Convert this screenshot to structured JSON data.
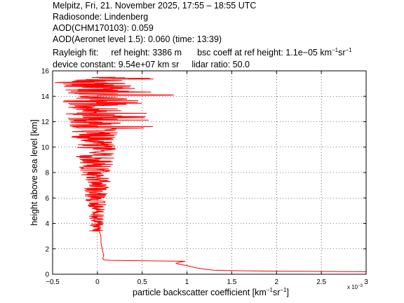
{
  "header": {
    "line1": "Melpitz, Fri, 21. November 2025, 17:55 – 18:55 UTC",
    "line2": "Radiosonde: Lindenberg",
    "line3": "AOD(CHM170103): 0.059",
    "line4": "AOD(Aeronet level 1.5): 0.060   (time: 13:39)",
    "rayleigh_label": "Rayleigh fit:",
    "ref_height": "ref height: 3386 m",
    "bsc_coeff_pre": "bsc coeff at ref height: 1.1e−05 km",
    "bsc_coeff_sup1": "−1",
    "bsc_coeff_mid": "sr",
    "bsc_coeff_sup2": "−1",
    "device_constant": "device constant: 9.54e+07 km sr",
    "lidar_ratio": "lidar ratio: 50.0"
  },
  "chart_data": {
    "type": "line",
    "xlabel_pre": "particle backscatter coefficient [km",
    "xlabel_sup1": "−1",
    "xlabel_mid": "sr",
    "xlabel_sup2": "−1",
    "xlabel_post": "]",
    "ylabel": "height above sea level [km]",
    "x_exponent": "x 10",
    "x_exponent_power": "−3",
    "xlim": [
      -0.5,
      3
    ],
    "ylim": [
      0,
      16
    ],
    "xticks": [
      "−0.5",
      "0",
      "0.5",
      "1",
      "1.5",
      "2",
      "2.5",
      "3"
    ],
    "yticks": [
      "0",
      "2",
      "4",
      "6",
      "8",
      "10",
      "12",
      "14",
      "16"
    ],
    "grid": true,
    "series": [
      {
        "color": "#ff0000",
        "note_units": "x in 1e-3 km^-1 sr^-1, y in km",
        "points": [
          [
            3.0,
            0.2
          ],
          [
            2.5,
            0.22
          ],
          [
            2.0,
            0.24
          ],
          [
            1.5,
            0.28
          ],
          [
            1.3,
            0.32
          ],
          [
            1.2,
            0.4
          ],
          [
            1.1,
            0.5
          ],
          [
            1.05,
            0.6
          ],
          [
            0.98,
            0.7
          ],
          [
            0.92,
            0.78
          ],
          [
            0.88,
            0.85
          ],
          [
            0.9,
            0.92
          ],
          [
            0.96,
            1.0
          ],
          [
            0.98,
            1.02
          ],
          [
            0.5,
            1.06
          ],
          [
            0.3,
            1.08
          ],
          [
            0.15,
            1.1
          ],
          [
            0.08,
            1.12
          ],
          [
            0.06,
            1.2
          ],
          [
            0.07,
            1.5
          ],
          [
            0.06,
            1.8
          ],
          [
            0.05,
            2.1
          ],
          [
            0.04,
            2.5
          ],
          [
            0.04,
            2.9
          ],
          [
            0.03,
            3.2
          ],
          [
            0.02,
            3.4
          ]
        ],
        "noise_from_km": 3.4,
        "noise_to_km": 15.5,
        "noise_amplitude_low": 0.08,
        "noise_amplitude_high": 0.45
      }
    ]
  }
}
